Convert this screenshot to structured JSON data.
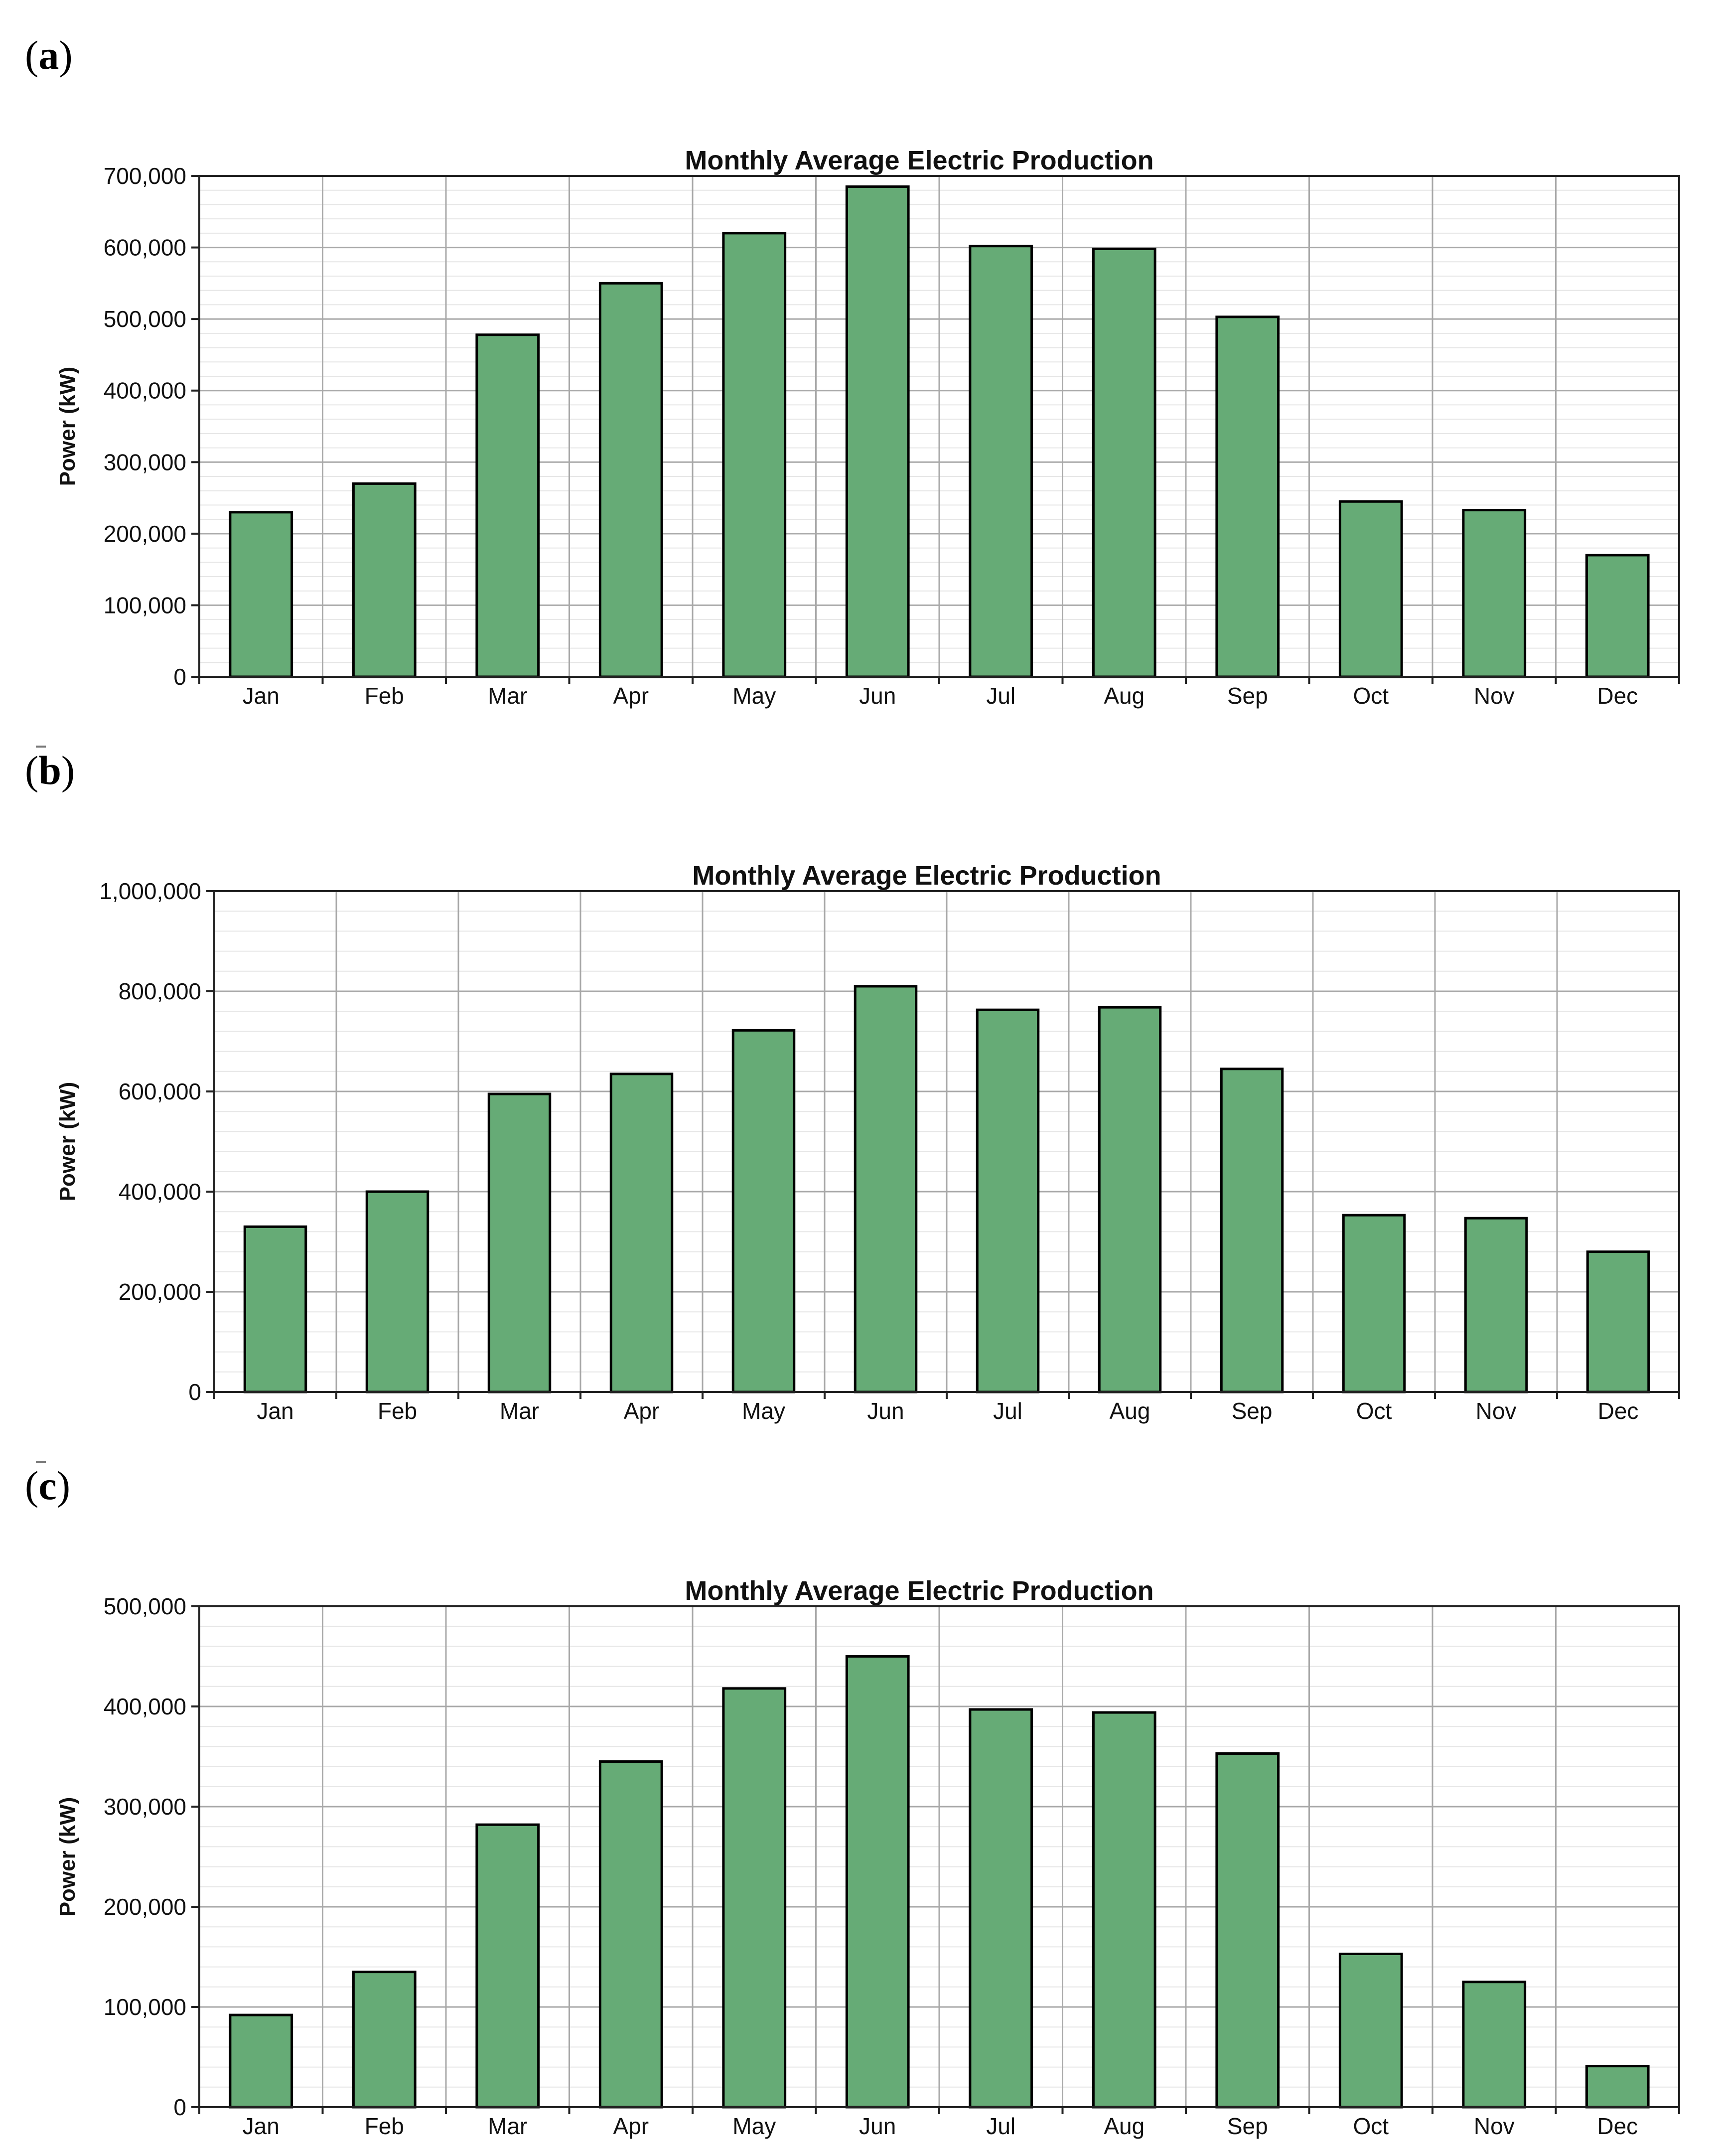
{
  "figure": {
    "panels": [
      {
        "label": "a"
      },
      {
        "label": "b"
      },
      {
        "label": "c"
      }
    ],
    "colors": {
      "bar_fill": "#66ab76",
      "bar_stroke": "#000000",
      "grid": "#a8a8a8",
      "minor_grid": "#e6e6e6"
    }
  },
  "chart_data": [
    {
      "type": "bar",
      "title": "Monthly Average Electric Production",
      "xlabel": "",
      "ylabel": "Power (kW)",
      "categories": [
        "Jan",
        "Feb",
        "Mar",
        "Apr",
        "May",
        "Jun",
        "Jul",
        "Aug",
        "Sep",
        "Oct",
        "Nov",
        "Dec"
      ],
      "values": [
        230000,
        270000,
        478000,
        550000,
        620000,
        685000,
        602000,
        598000,
        503000,
        245000,
        233000,
        170000
      ],
      "ylim": [
        0,
        700000
      ],
      "yticks": [
        0,
        100000,
        200000,
        300000,
        400000,
        500000,
        600000,
        700000
      ],
      "ytick_labels": [
        "0",
        "100,000",
        "200,000",
        "300,000",
        "400,000",
        "500,000",
        "600,000",
        "700,000"
      ],
      "grid": true
    },
    {
      "type": "bar",
      "title": "Monthly Average Electric Production",
      "xlabel": "",
      "ylabel": "Power (kW)",
      "categories": [
        "Jan",
        "Feb",
        "Mar",
        "Apr",
        "May",
        "Jun",
        "Jul",
        "Aug",
        "Sep",
        "Oct",
        "Nov",
        "Dec"
      ],
      "values": [
        330000,
        400000,
        595000,
        635000,
        722000,
        810000,
        763000,
        768000,
        645000,
        353000,
        347000,
        280000
      ],
      "ylim": [
        0,
        1000000
      ],
      "yticks": [
        0,
        200000,
        400000,
        600000,
        800000,
        1000000
      ],
      "ytick_labels": [
        "0",
        "200,000",
        "400,000",
        "600,000",
        "800,000",
        "1,000,000"
      ],
      "grid": true
    },
    {
      "type": "bar",
      "title": "Monthly Average Electric Production",
      "xlabel": "",
      "ylabel": "Power (kW)",
      "categories": [
        "Jan",
        "Feb",
        "Mar",
        "Apr",
        "May",
        "Jun",
        "Jul",
        "Aug",
        "Sep",
        "Oct",
        "Nov",
        "Dec"
      ],
      "values": [
        92000,
        135000,
        282000,
        345000,
        418000,
        450000,
        397000,
        394000,
        353000,
        153000,
        125000,
        41000
      ],
      "ylim": [
        0,
        500000
      ],
      "yticks": [
        0,
        100000,
        200000,
        300000,
        400000,
        500000
      ],
      "ytick_labels": [
        "0",
        "100,000",
        "200,000",
        "300,000",
        "400,000",
        "500,000"
      ],
      "grid": true
    }
  ]
}
